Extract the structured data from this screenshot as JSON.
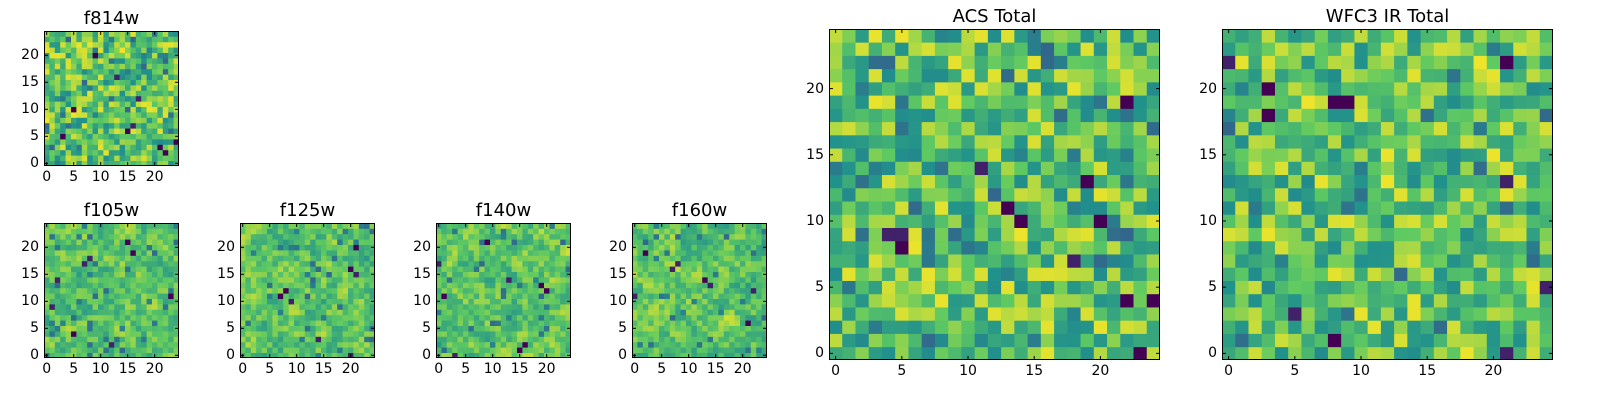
{
  "figure": {
    "colormap": [
      "#440154",
      "#3b528b",
      "#21918c",
      "#5ec962",
      "#fde725"
    ]
  },
  "chart_data": [
    {
      "type": "heatmap",
      "title": "f814w",
      "grid": [
        25,
        25
      ],
      "xlim": [
        0,
        24
      ],
      "ylim": [
        0,
        24
      ],
      "xticks": [
        "0",
        "5",
        "10",
        "15",
        "20"
      ],
      "yticks": [
        "0",
        "5",
        "10",
        "15",
        "20"
      ],
      "seed": 11,
      "smooth": 0.15,
      "dark_cells": [
        [
          3,
          5
        ],
        [
          15,
          6
        ],
        [
          16,
          7
        ],
        [
          21,
          3
        ],
        [
          22,
          2
        ],
        [
          24,
          4
        ],
        [
          9,
          20
        ],
        [
          13,
          16
        ],
        [
          17,
          12
        ],
        [
          5,
          10
        ]
      ]
    },
    {
      "type": "heatmap",
      "title": "f105w",
      "grid": [
        25,
        25
      ],
      "xlim": [
        0,
        24
      ],
      "ylim": [
        0,
        24
      ],
      "xticks": [
        "0",
        "5",
        "10",
        "15",
        "20"
      ],
      "yticks": [
        "0",
        "5",
        "10",
        "15",
        "20"
      ],
      "seed": 23,
      "smooth": 0.55,
      "dark_cells": [
        [
          1,
          9
        ],
        [
          2,
          14
        ],
        [
          7,
          17
        ],
        [
          8,
          18
        ],
        [
          15,
          21
        ],
        [
          16,
          19
        ],
        [
          23,
          11
        ],
        [
          5,
          4
        ],
        [
          12,
          2
        ]
      ]
    },
    {
      "type": "heatmap",
      "title": "f125w",
      "grid": [
        25,
        25
      ],
      "xlim": [
        0,
        24
      ],
      "ylim": [
        0,
        24
      ],
      "xticks": [
        "0",
        "5",
        "10",
        "15",
        "20"
      ],
      "yticks": [
        "0",
        "5",
        "10",
        "15",
        "20"
      ],
      "seed": 37,
      "smooth": 0.55,
      "dark_cells": [
        [
          7,
          11
        ],
        [
          8,
          12
        ],
        [
          9,
          10
        ],
        [
          20,
          16
        ],
        [
          21,
          15
        ],
        [
          21,
          20
        ],
        [
          20,
          0
        ],
        [
          14,
          3
        ]
      ]
    },
    {
      "type": "heatmap",
      "title": "f140w",
      "grid": [
        25,
        25
      ],
      "xlim": [
        0,
        24
      ],
      "ylim": [
        0,
        24
      ],
      "xticks": [
        "0",
        "5",
        "10",
        "15",
        "20"
      ],
      "yticks": [
        "0",
        "5",
        "10",
        "15",
        "20"
      ],
      "seed": 41,
      "smooth": 0.55,
      "dark_cells": [
        [
          0,
          17
        ],
        [
          1,
          11
        ],
        [
          9,
          21
        ],
        [
          15,
          1
        ],
        [
          16,
          2
        ],
        [
          13,
          14
        ],
        [
          19,
          13
        ],
        [
          20,
          12
        ],
        [
          3,
          0
        ]
      ]
    },
    {
      "type": "heatmap",
      "title": "f160w",
      "grid": [
        25,
        25
      ],
      "xlim": [
        0,
        24
      ],
      "ylim": [
        0,
        24
      ],
      "xticks": [
        "0",
        "5",
        "10",
        "15",
        "20"
      ],
      "yticks": [
        "0",
        "5",
        "10",
        "15",
        "20"
      ],
      "seed": 53,
      "smooth": 0.55,
      "dark_cells": [
        [
          2,
          19
        ],
        [
          7,
          16
        ],
        [
          8,
          17
        ],
        [
          0,
          11
        ],
        [
          13,
          14
        ],
        [
          14,
          13
        ],
        [
          22,
          12
        ],
        [
          21,
          6
        ]
      ]
    },
    {
      "type": "heatmap",
      "title": "ACS Total",
      "grid": [
        25,
        25
      ],
      "xlim": [
        0,
        24
      ],
      "ylim": [
        0,
        24
      ],
      "xticks": [
        "0",
        "5",
        "10",
        "15",
        "20"
      ],
      "yticks": [
        "0",
        "5",
        "10",
        "15",
        "20"
      ],
      "seed": 67,
      "smooth": 0.1,
      "dark_cells": [
        [
          5,
          8
        ],
        [
          5,
          9
        ],
        [
          4,
          9
        ],
        [
          11,
          14
        ],
        [
          13,
          11
        ],
        [
          14,
          10
        ],
        [
          19,
          13
        ],
        [
          20,
          10
        ],
        [
          22,
          4
        ],
        [
          24,
          4
        ],
        [
          23,
          0
        ],
        [
          18,
          7
        ],
        [
          22,
          19
        ]
      ]
    },
    {
      "type": "heatmap",
      "title": "WFC3 IR Total",
      "grid": [
        25,
        25
      ],
      "xlim": [
        0,
        24
      ],
      "ylim": [
        0,
        24
      ],
      "xticks": [
        "0",
        "5",
        "10",
        "15",
        "20"
      ],
      "yticks": [
        "0",
        "5",
        "10",
        "15",
        "20"
      ],
      "seed": 79,
      "smooth": 0.1,
      "dark_cells": [
        [
          0,
          22
        ],
        [
          21,
          22
        ],
        [
          3,
          18
        ],
        [
          8,
          19
        ],
        [
          9,
          19
        ],
        [
          21,
          13
        ],
        [
          5,
          3
        ],
        [
          8,
          1
        ],
        [
          21,
          0
        ],
        [
          24,
          5
        ],
        [
          3,
          20
        ]
      ]
    }
  ]
}
